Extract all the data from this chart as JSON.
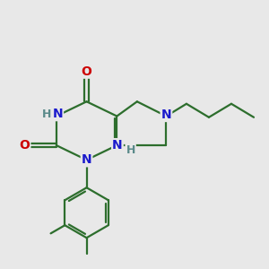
{
  "bg_color": "#e8e8e8",
  "bond_color": "#2d6e2d",
  "N_color": "#1a1acc",
  "O_color": "#cc0000",
  "H_color": "#5a8a8a",
  "line_width": 1.6,
  "font_size_atom": 10.0,
  "font_size_H": 9.0,
  "xlim": [
    0,
    10
  ],
  "ylim": [
    0,
    10
  ]
}
